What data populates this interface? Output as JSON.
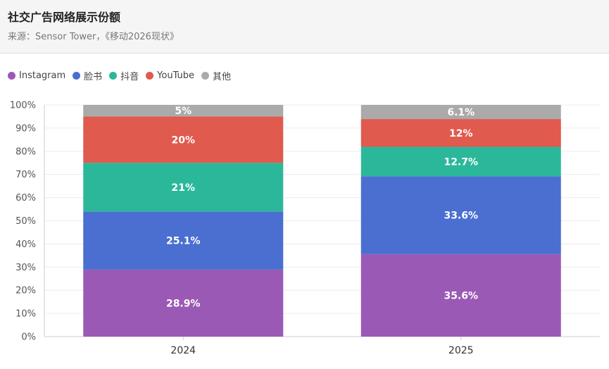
{
  "header": {
    "title": "社交广告网络展示份额",
    "subtitle": "来源：Sensor Tower，《移动2026现状》"
  },
  "chart_data": {
    "type": "bar",
    "stacked": true,
    "title": "社交广告网络展示份额",
    "subtitle": "来源：Sensor Tower，《移动2026现状》",
    "categories": [
      "2024",
      "2025"
    ],
    "series": [
      {
        "name": "Instagram",
        "color": "#9b59b6",
        "values": [
          28.9,
          35.6
        ],
        "labels": [
          "28.9%",
          "35.6%"
        ]
      },
      {
        "name": "脸书",
        "color": "#4a6fd1",
        "values": [
          25.1,
          33.6
        ],
        "labels": [
          "25.1%",
          "33.6%"
        ]
      },
      {
        "name": "抖音",
        "color": "#2bb89a",
        "values": [
          21,
          12.7
        ],
        "labels": [
          "21%",
          "12.7%"
        ]
      },
      {
        "name": "YouTube",
        "color": "#e05a4e",
        "values": [
          20,
          12
        ],
        "labels": [
          "20%",
          "12%"
        ]
      },
      {
        "name": "其他",
        "color": "#aaaaaa",
        "values": [
          5,
          6.1
        ],
        "labels": [
          "5%",
          "6.1%"
        ]
      }
    ],
    "yticks": [
      "0%",
      "10%",
      "20%",
      "30%",
      "40%",
      "50%",
      "60%",
      "70%",
      "80%",
      "90%",
      "100%"
    ],
    "ylim": [
      0,
      100
    ],
    "legend_position": "top-left",
    "grid": true
  }
}
